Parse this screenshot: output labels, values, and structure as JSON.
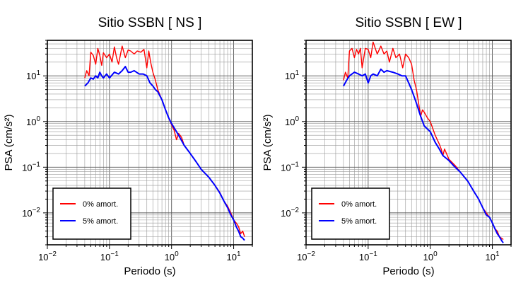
{
  "chart_data": [
    {
      "type": "line",
      "title": "Sitio SSBN [ NS ]",
      "xlabel": "Periodo (s)",
      "ylabel": "PSA (cm/s²)",
      "xscale": "log",
      "yscale": "log",
      "xlim": [
        0.01,
        20
      ],
      "ylim": [
        0.002,
        60
      ],
      "grid": true,
      "legend_position": "bottom-left",
      "x_ticks": [
        {
          "value": 0.01,
          "base": "10",
          "exp": "−2"
        },
        {
          "value": 0.1,
          "base": "10",
          "exp": "−1"
        },
        {
          "value": 1,
          "base": "10",
          "exp": "0"
        },
        {
          "value": 10,
          "base": "10",
          "exp": "1"
        }
      ],
      "y_ticks": [
        {
          "value": 0.01,
          "base": "10",
          "exp": "−2"
        },
        {
          "value": 0.1,
          "base": "10",
          "exp": "−1"
        },
        {
          "value": 1,
          "base": "10",
          "exp": "0"
        },
        {
          "value": 10,
          "base": "10",
          "exp": "1"
        }
      ],
      "series": [
        {
          "name": "0% amort.",
          "color": "#ff0000",
          "points": [
            [
              0.04,
              9
            ],
            [
              0.043,
              13
            ],
            [
              0.047,
              10
            ],
            [
              0.05,
              33
            ],
            [
              0.055,
              28
            ],
            [
              0.06,
              18
            ],
            [
              0.065,
              40
            ],
            [
              0.07,
              28
            ],
            [
              0.075,
              17
            ],
            [
              0.08,
              32
            ],
            [
              0.09,
              25
            ],
            [
              0.1,
              30
            ],
            [
              0.11,
              20
            ],
            [
              0.12,
              43
            ],
            [
              0.13,
              25
            ],
            [
              0.14,
              18
            ],
            [
              0.16,
              45
            ],
            [
              0.18,
              25
            ],
            [
              0.2,
              37
            ],
            [
              0.22,
              35
            ],
            [
              0.25,
              30
            ],
            [
              0.28,
              35
            ],
            [
              0.32,
              33
            ],
            [
              0.36,
              38
            ],
            [
              0.4,
              15
            ],
            [
              0.43,
              35
            ],
            [
              0.46,
              20
            ],
            [
              0.5,
              12
            ],
            [
              0.55,
              8
            ],
            [
              0.6,
              5
            ],
            [
              0.7,
              3
            ],
            [
              0.8,
              1.8
            ],
            [
              0.9,
              1.2
            ],
            [
              1,
              0.85
            ],
            [
              1.1,
              0.65
            ],
            [
              1.2,
              0.4
            ],
            [
              1.3,
              0.55
            ],
            [
              1.45,
              0.45
            ],
            [
              1.6,
              0.3
            ],
            [
              2,
              0.2
            ],
            [
              2.5,
              0.13
            ],
            [
              3,
              0.09
            ],
            [
              4,
              0.06
            ],
            [
              5,
              0.04
            ],
            [
              6,
              0.028
            ],
            [
              7,
              0.018
            ],
            [
              8,
              0.014
            ],
            [
              9,
              0.01
            ],
            [
              10,
              0.007
            ],
            [
              11,
              0.006
            ],
            [
              12,
              0.005
            ],
            [
              13,
              0.0035
            ],
            [
              14,
              0.004
            ],
            [
              15,
              0.003
            ]
          ]
        },
        {
          "name": "5% amort.",
          "color": "#0000ff",
          "points": [
            [
              0.04,
              6
            ],
            [
              0.045,
              7
            ],
            [
              0.05,
              9
            ],
            [
              0.055,
              8.5
            ],
            [
              0.06,
              10
            ],
            [
              0.065,
              9
            ],
            [
              0.07,
              12
            ],
            [
              0.075,
              10
            ],
            [
              0.08,
              9
            ],
            [
              0.09,
              11
            ],
            [
              0.1,
              9
            ],
            [
              0.12,
              12
            ],
            [
              0.14,
              11
            ],
            [
              0.16,
              13
            ],
            [
              0.18,
              16
            ],
            [
              0.2,
              12
            ],
            [
              0.22,
              12
            ],
            [
              0.25,
              13
            ],
            [
              0.3,
              11
            ],
            [
              0.35,
              11
            ],
            [
              0.4,
              10
            ],
            [
              0.45,
              7
            ],
            [
              0.5,
              6
            ],
            [
              0.55,
              5
            ],
            [
              0.6,
              4.5
            ],
            [
              0.7,
              3
            ],
            [
              0.8,
              1.8
            ],
            [
              0.9,
              1.2
            ],
            [
              1,
              0.9
            ],
            [
              1.2,
              0.6
            ],
            [
              1.4,
              0.42
            ],
            [
              1.6,
              0.3
            ],
            [
              2,
              0.2
            ],
            [
              2.5,
              0.13
            ],
            [
              3,
              0.09
            ],
            [
              4,
              0.06
            ],
            [
              5,
              0.04
            ],
            [
              6,
              0.027
            ],
            [
              7,
              0.018
            ],
            [
              8,
              0.013
            ],
            [
              9,
              0.009
            ],
            [
              10,
              0.007
            ],
            [
              11,
              0.005
            ],
            [
              12,
              0.004
            ],
            [
              13,
              0.003
            ],
            [
              14,
              0.0028
            ],
            [
              15,
              0.0025
            ]
          ]
        }
      ]
    },
    {
      "type": "line",
      "title": "Sitio SSBN [ EW ]",
      "xlabel": "Periodo (s)",
      "ylabel": "PSA (cm/s²)",
      "xscale": "log",
      "yscale": "log",
      "xlim": [
        0.01,
        20
      ],
      "ylim": [
        0.002,
        60
      ],
      "grid": true,
      "legend_position": "bottom-left",
      "x_ticks": [
        {
          "value": 0.01,
          "base": "10",
          "exp": "−2"
        },
        {
          "value": 0.1,
          "base": "10",
          "exp": "−1"
        },
        {
          "value": 1,
          "base": "10",
          "exp": "0"
        },
        {
          "value": 10,
          "base": "10",
          "exp": "1"
        }
      ],
      "y_ticks": [
        {
          "value": 0.01,
          "base": "10",
          "exp": "−2"
        },
        {
          "value": 0.1,
          "base": "10",
          "exp": "−1"
        },
        {
          "value": 1,
          "base": "10",
          "exp": "0"
        },
        {
          "value": 10,
          "base": "10",
          "exp": "1"
        }
      ],
      "series": [
        {
          "name": "0% amort.",
          "color": "#ff0000",
          "points": [
            [
              0.04,
              8
            ],
            [
              0.043,
              12
            ],
            [
              0.047,
              9
            ],
            [
              0.05,
              35
            ],
            [
              0.055,
              40
            ],
            [
              0.06,
              25
            ],
            [
              0.065,
              38
            ],
            [
              0.07,
              30
            ],
            [
              0.075,
              40
            ],
            [
              0.08,
              15
            ],
            [
              0.09,
              40
            ],
            [
              0.1,
              38
            ],
            [
              0.11,
              25
            ],
            [
              0.12,
              55
            ],
            [
              0.13,
              40
            ],
            [
              0.14,
              30
            ],
            [
              0.16,
              45
            ],
            [
              0.18,
              30
            ],
            [
              0.2,
              35
            ],
            [
              0.22,
              20
            ],
            [
              0.25,
              40
            ],
            [
              0.28,
              25
            ],
            [
              0.32,
              30
            ],
            [
              0.36,
              15
            ],
            [
              0.4,
              30
            ],
            [
              0.45,
              25
            ],
            [
              0.5,
              18
            ],
            [
              0.55,
              8
            ],
            [
              0.6,
              5
            ],
            [
              0.65,
              2.5
            ],
            [
              0.7,
              1.3
            ],
            [
              0.75,
              1.8
            ],
            [
              0.8,
              1.6
            ],
            [
              0.9,
              1.2
            ],
            [
              1,
              1
            ],
            [
              1.2,
              0.5
            ],
            [
              1.4,
              0.32
            ],
            [
              1.5,
              0.25
            ],
            [
              1.6,
              0.18
            ],
            [
              1.7,
              0.25
            ],
            [
              2,
              0.15
            ],
            [
              2.5,
              0.11
            ],
            [
              3,
              0.08
            ],
            [
              4,
              0.05
            ],
            [
              5,
              0.03
            ],
            [
              6,
              0.02
            ],
            [
              7,
              0.013
            ],
            [
              8,
              0.01
            ],
            [
              9,
              0.008
            ],
            [
              10,
              0.006
            ],
            [
              11,
              0.0045
            ],
            [
              12,
              0.004
            ],
            [
              13,
              0.003
            ],
            [
              14,
              0.0028
            ],
            [
              15,
              0.0026
            ]
          ]
        },
        {
          "name": "5% amort.",
          "color": "#0000ff",
          "points": [
            [
              0.04,
              6
            ],
            [
              0.045,
              8
            ],
            [
              0.05,
              10
            ],
            [
              0.06,
              12
            ],
            [
              0.07,
              11
            ],
            [
              0.08,
              10
            ],
            [
              0.09,
              11
            ],
            [
              0.1,
              7
            ],
            [
              0.11,
              10
            ],
            [
              0.12,
              11
            ],
            [
              0.14,
              10
            ],
            [
              0.16,
              14
            ],
            [
              0.18,
              12
            ],
            [
              0.2,
              13
            ],
            [
              0.25,
              12
            ],
            [
              0.3,
              11
            ],
            [
              0.35,
              10
            ],
            [
              0.4,
              10
            ],
            [
              0.45,
              7
            ],
            [
              0.5,
              5
            ],
            [
              0.55,
              3.5
            ],
            [
              0.6,
              2.5
            ],
            [
              0.7,
              1.3
            ],
            [
              0.8,
              0.8
            ],
            [
              1,
              0.6
            ],
            [
              1.2,
              0.35
            ],
            [
              1.4,
              0.25
            ],
            [
              1.6,
              0.18
            ],
            [
              2,
              0.14
            ],
            [
              2.5,
              0.1
            ],
            [
              3,
              0.08
            ],
            [
              4,
              0.05
            ],
            [
              5,
              0.03
            ],
            [
              6,
              0.02
            ],
            [
              7,
              0.013
            ],
            [
              8,
              0.009
            ],
            [
              9,
              0.008
            ],
            [
              10,
              0.006
            ],
            [
              11,
              0.0045
            ],
            [
              12,
              0.0035
            ],
            [
              13,
              0.003
            ],
            [
              14,
              0.0025
            ],
            [
              15,
              0.0022
            ]
          ]
        }
      ]
    }
  ]
}
